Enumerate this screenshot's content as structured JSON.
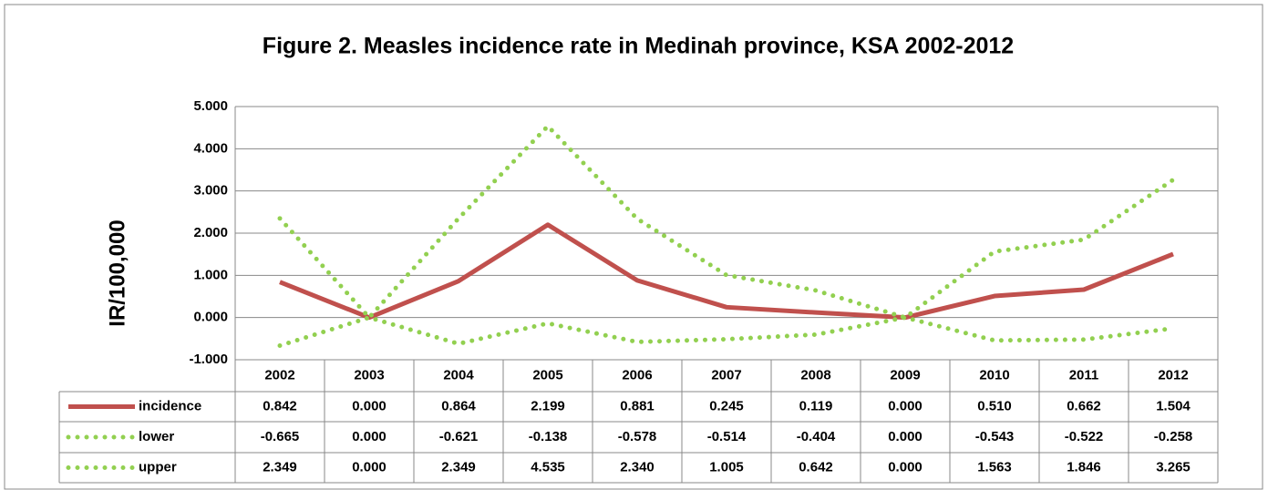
{
  "chart_data": {
    "type": "line",
    "title": "Figure 2. Measles incidence rate in Medinah province, KSA 2002-2012",
    "y_label": "IR/100,000",
    "categories": [
      "2002",
      "2003",
      "2004",
      "2005",
      "2006",
      "2007",
      "2008",
      "2009",
      "2010",
      "2011",
      "2012"
    ],
    "series": [
      {
        "name": "incidence",
        "color": "#c0504d",
        "style": "solid",
        "values": [
          0.842,
          0,
          0.864,
          2.199,
          0.881,
          0.245,
          0.119,
          0,
          0.51,
          0.662,
          1.504
        ],
        "value_labels": [
          "0.842",
          "0.000",
          "0.864",
          "2.199",
          "0.881",
          "0.245",
          "0.119",
          "0.000",
          "0.510",
          "0.662",
          "1.504"
        ]
      },
      {
        "name": "lower",
        "color": "#92d050",
        "style": "dotted",
        "values": [
          -0.665,
          0,
          -0.621,
          -0.138,
          -0.578,
          -0.514,
          -0.404,
          0,
          -0.543,
          -0.522,
          -0.258
        ],
        "value_labels": [
          "-0.665",
          "0.000",
          "-0.621",
          "-0.138",
          "-0.578",
          "-0.514",
          "-0.404",
          "0.000",
          "-0.543",
          "-0.522",
          "-0.258"
        ]
      },
      {
        "name": "upper",
        "color": "#92d050",
        "style": "dotted",
        "values": [
          2.349,
          0,
          2.349,
          4.535,
          2.34,
          1.005,
          0.642,
          0,
          1.563,
          1.846,
          3.265
        ],
        "value_labels": [
          "2.349",
          "0.000",
          "2.349",
          "4.535",
          "2.340",
          "1.005",
          "0.642",
          "0.000",
          "1.563",
          "1.846",
          "3.265"
        ]
      }
    ],
    "ylim": [
      -1,
      5
    ],
    "yticks": [
      {
        "value": -1,
        "label": "-1.000"
      },
      {
        "value": 0,
        "label": "0.000"
      },
      {
        "value": 1,
        "label": "1.000"
      },
      {
        "value": 2,
        "label": "2.000"
      },
      {
        "value": 3,
        "label": "3.000"
      },
      {
        "value": 4,
        "label": "4.000"
      },
      {
        "value": 5,
        "label": "5.000"
      }
    ],
    "grid": true
  }
}
